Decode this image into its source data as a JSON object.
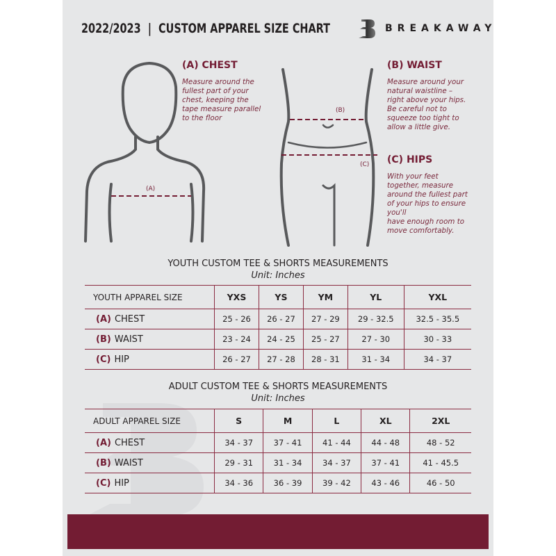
{
  "header": {
    "title": "2022/2023  |  CUSTOM APPAREL SIZE CHART",
    "brand": "BREAKAWAY",
    "logo_letter": "B"
  },
  "measurements": {
    "chest": {
      "title": "(A) CHEST",
      "marker": "(A)",
      "lines": [
        "Measure around the",
        "fullest part of your",
        "chest, keeping the",
        "tape measure parallel",
        "to the floor"
      ]
    },
    "waist": {
      "title": "(B) WAIST",
      "marker": "(B)",
      "lines": [
        "Measure around your",
        "natural waistline –",
        "right above your hips.",
        "Be careful not to",
        "squeeze too tight to",
        "allow a little give."
      ]
    },
    "hips": {
      "title": "(C) HIPS",
      "marker": "(C)",
      "lines": [
        "With your feet",
        "together, measure",
        "around the fullest part",
        "of your hips to ensure",
        "you'll",
        "have enough room to",
        "move comfortably."
      ]
    }
  },
  "youth": {
    "title": "YOUTH CUSTOM TEE & SHORTS MEASUREMENTS",
    "unit": "Unit: Inches",
    "header": [
      "YOUTH APPAREL SIZE",
      "YXS",
      "YS",
      "YM",
      "YL",
      "YXL"
    ],
    "rows": [
      {
        "code": "(A)",
        "label": "CHEST",
        "values": [
          "25 - 26",
          "26 - 27",
          "27 - 29",
          "29 - 32.5",
          "32.5 - 35.5"
        ]
      },
      {
        "code": "(B)",
        "label": "WAIST",
        "values": [
          "23 - 24",
          "24 - 25",
          "25 - 27",
          "27 - 30",
          "30 - 33"
        ]
      },
      {
        "code": "(C)",
        "label": "HIP",
        "values": [
          "26 - 27",
          "27 - 28",
          "28 - 31",
          "31 - 34",
          "34 - 37"
        ]
      }
    ]
  },
  "adult": {
    "title": "ADULT CUSTOM TEE & SHORTS MEASUREMENTS",
    "unit": "Unit: Inches",
    "header": [
      "ADULT APPAREL SIZE",
      "S",
      "M",
      "L",
      "XL",
      "2XL"
    ],
    "rows": [
      {
        "code": "(A)",
        "label": "CHEST",
        "values": [
          "34 - 37",
          "37 - 41",
          "41 - 44",
          "44 - 48",
          "48 - 52"
        ]
      },
      {
        "code": "(B)",
        "label": "WAIST",
        "values": [
          "29 - 31",
          "31 - 34",
          "34 - 37",
          "37 - 41",
          "41 - 45.5"
        ]
      },
      {
        "code": "(C)",
        "label": "HIP",
        "values": [
          "34 - 36",
          "36 - 39",
          "39 - 42",
          "43 - 46",
          "46 - 50"
        ]
      }
    ]
  },
  "colors": {
    "accent": "#731c33",
    "background": "#e6e7e8",
    "text": "#231f20"
  }
}
